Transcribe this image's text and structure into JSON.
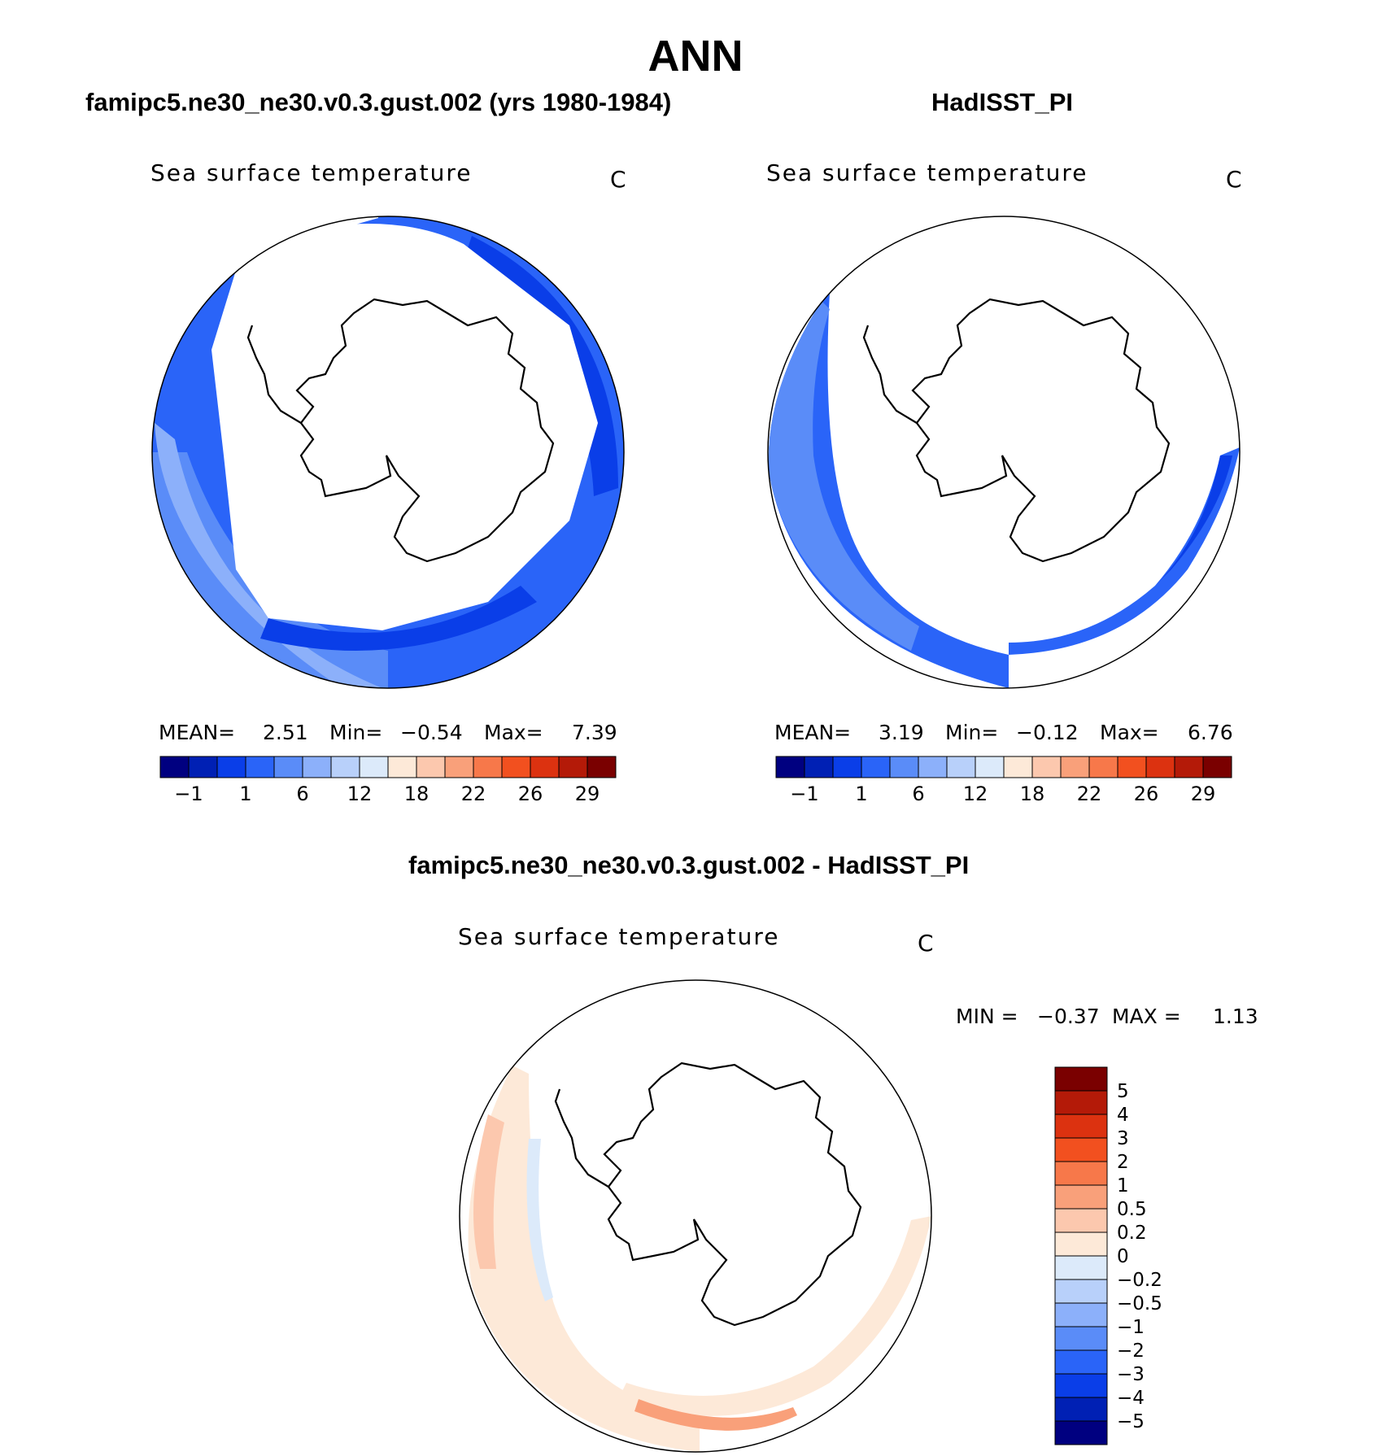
{
  "title": "ANN",
  "colors": {
    "abs_levels": [
      "#000080",
      "#0020b4",
      "#0a3ee8",
      "#2a64f8",
      "#5a8cf8",
      "#8cb0fa",
      "#b8d0fa",
      "#dceafa",
      "#fde9d8",
      "#fcc8ae",
      "#f9a07a",
      "#f7784a",
      "#f2501f",
      "#dc3210",
      "#b41a08",
      "#7a0000"
    ],
    "diff_levels": [
      "#000080",
      "#0020b4",
      "#0a3ee8",
      "#2a64f8",
      "#5a8cf8",
      "#8cb0fa",
      "#b8d0fa",
      "#dceafa",
      "#fde9d8",
      "#fcc8ae",
      "#f9a07a",
      "#f7784a",
      "#f2501f",
      "#dc3210",
      "#b41a08",
      "#7a0000"
    ]
  },
  "panels": {
    "model": {
      "case_title": "famipc5.ne30_ne30.v0.3.gust.002 (yrs 1980-1984)",
      "label": "Sea surface temperature",
      "units": "C",
      "stats": {
        "mean_label": "MEAN=",
        "mean": "2.51",
        "min_label": "Min=",
        "min": "−0.54",
        "max_label": "Max=",
        "max": "7.39"
      },
      "colorbar_ticks": [
        "−1",
        "1",
        "6",
        "12",
        "18",
        "22",
        "26",
        "29"
      ]
    },
    "obs": {
      "case_title": "HadISST_PI",
      "label": "Sea surface temperature",
      "units": "C",
      "stats": {
        "mean_label": "MEAN=",
        "mean": "3.19",
        "min_label": "Min=",
        "min": "−0.12",
        "max_label": "Max=",
        "max": "6.76"
      },
      "colorbar_ticks": [
        "−1",
        "1",
        "6",
        "12",
        "18",
        "22",
        "26",
        "29"
      ]
    },
    "diff": {
      "case_title": "famipc5.ne30_ne30.v0.3.gust.002 - HadISST_PI",
      "label": "Sea surface temperature",
      "units": "C",
      "stats": {
        "min_label": "MIN =",
        "min": "−0.37",
        "max_label": "MAX =",
        "max": "1.13"
      },
      "colorbar_ticks": [
        "5",
        "4",
        "3",
        "2",
        "1",
        "0.5",
        "0.2",
        "0",
        "−0.2",
        "−0.5",
        "−1",
        "−2",
        "−3",
        "−4",
        "−5"
      ]
    }
  }
}
